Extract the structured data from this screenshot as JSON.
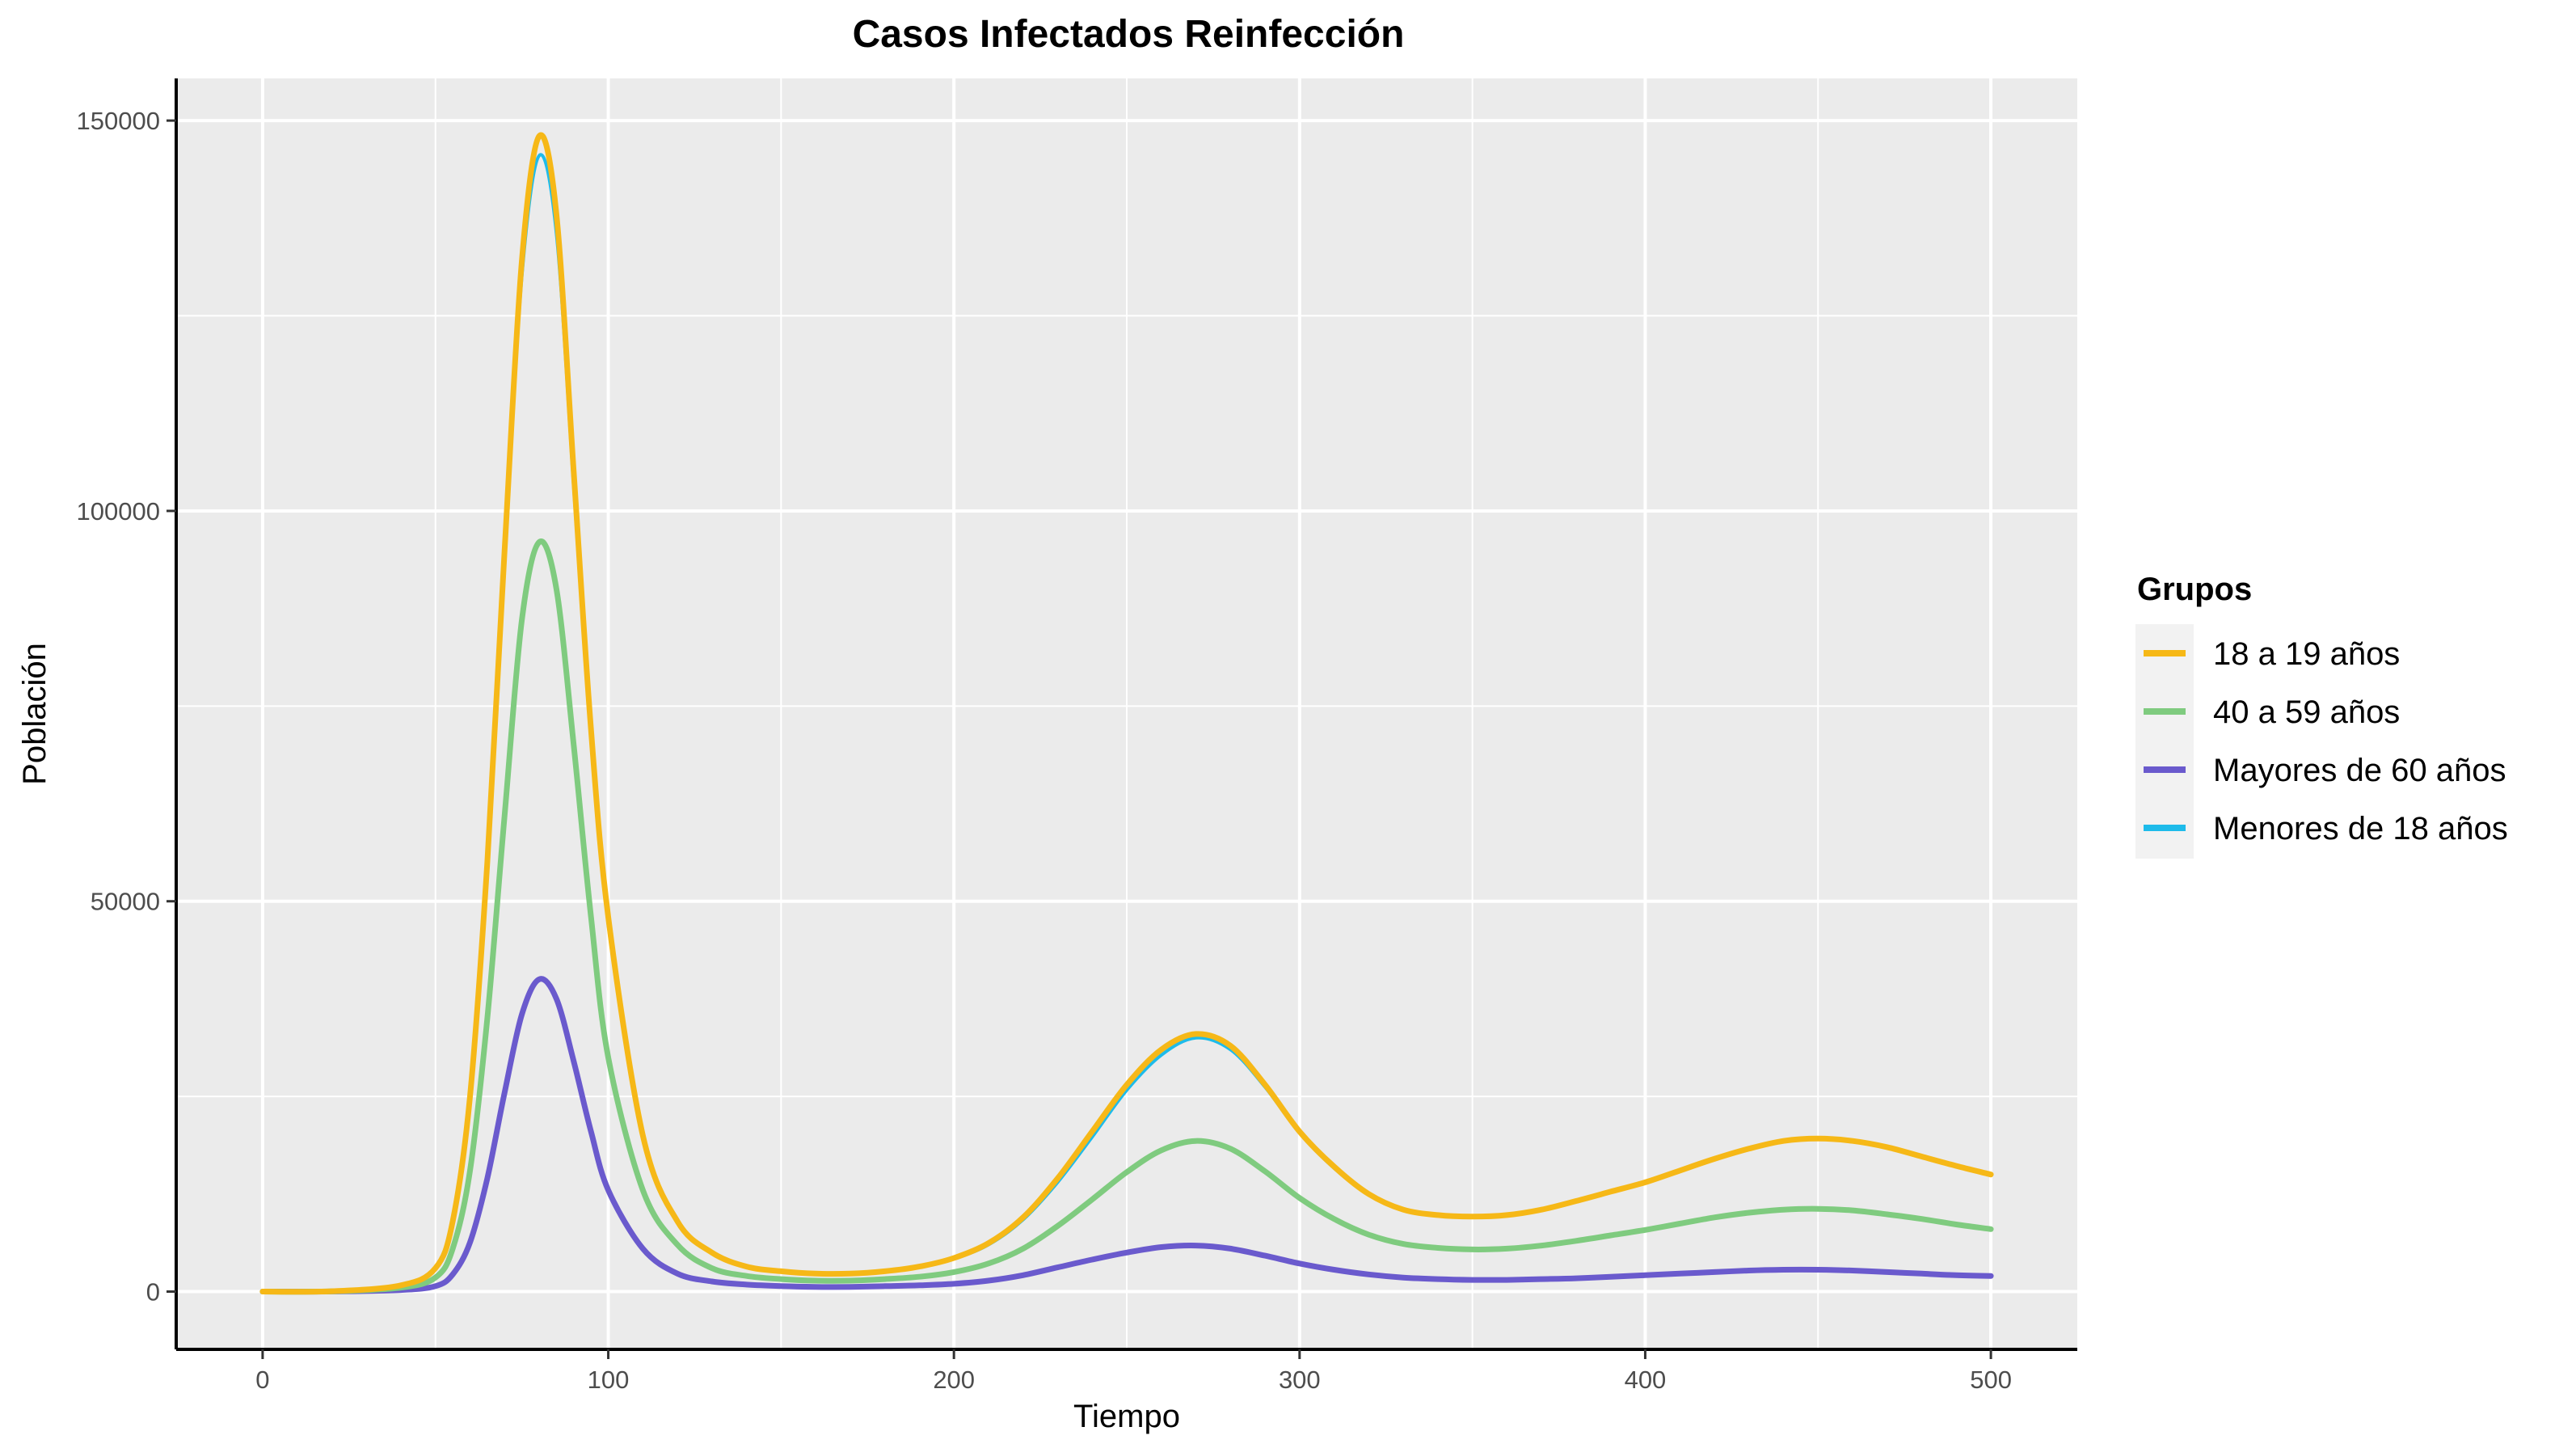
{
  "chart_data": {
    "type": "line",
    "title": "Casos Infectados Reinfección",
    "xlabel": "Tiempo",
    "ylabel": "Población",
    "xlim": [
      -25,
      525
    ],
    "ylim": [
      -7400,
      155400
    ],
    "x_ticks": [
      0,
      100,
      200,
      300,
      400,
      500
    ],
    "y_ticks": [
      0,
      50000,
      100000,
      150000
    ],
    "x_tick_labels": [
      "0",
      "100",
      "200",
      "300",
      "400",
      "500"
    ],
    "y_tick_labels": [
      "0",
      "50000",
      "100000",
      "150000"
    ],
    "grid": true,
    "legend": {
      "title": "Grupos",
      "position": "right"
    },
    "x": [
      0,
      20,
      40,
      50,
      55,
      60,
      65,
      70,
      75,
      80,
      85,
      90,
      95,
      100,
      110,
      120,
      130,
      140,
      150,
      160,
      170,
      180,
      190,
      200,
      210,
      220,
      230,
      240,
      250,
      260,
      270,
      280,
      290,
      300,
      310,
      320,
      330,
      340,
      350,
      360,
      370,
      380,
      390,
      400,
      410,
      420,
      430,
      440,
      450,
      460,
      470,
      480,
      490,
      500
    ],
    "series": [
      {
        "name": "18 a 19 años",
        "color": "#F6B817",
        "values": [
          0,
          50,
          800,
          3000,
          9000,
          25000,
          55000,
          95000,
          132000,
          148000,
          138000,
          105000,
          72000,
          48000,
          20000,
          9000,
          5000,
          3200,
          2600,
          2300,
          2300,
          2600,
          3200,
          4300,
          6200,
          9500,
          14500,
          20500,
          26500,
          31000,
          33000,
          31500,
          26500,
          20500,
          16000,
          12500,
          10500,
          9800,
          9600,
          9800,
          10500,
          11600,
          12800,
          14000,
          15500,
          17000,
          18300,
          19300,
          19600,
          19300,
          18500,
          17300,
          16100,
          15000
        ]
      },
      {
        "name": "40 a 59 años",
        "color": "#7FCB7F",
        "values": [
          0,
          30,
          500,
          1800,
          5500,
          15500,
          35000,
          61000,
          86000,
          96000,
          90000,
          70000,
          48000,
          30000,
          13000,
          6000,
          3000,
          2000,
          1600,
          1400,
          1400,
          1600,
          1900,
          2500,
          3600,
          5500,
          8400,
          11800,
          15300,
          18100,
          19300,
          18300,
          15400,
          12000,
          9300,
          7300,
          6100,
          5600,
          5400,
          5500,
          5900,
          6500,
          7200,
          7900,
          8700,
          9500,
          10100,
          10500,
          10600,
          10400,
          9900,
          9300,
          8600,
          8000
        ]
      },
      {
        "name": "Mayores de 60 años",
        "color": "#6A5ACD",
        "values": [
          0,
          10,
          200,
          700,
          2200,
          6300,
          14500,
          25500,
          35500,
          40000,
          37500,
          29500,
          20500,
          13000,
          5500,
          2300,
          1300,
          900,
          700,
          600,
          600,
          700,
          800,
          1000,
          1400,
          2100,
          3100,
          4100,
          5000,
          5700,
          5900,
          5500,
          4600,
          3600,
          2800,
          2200,
          1800,
          1600,
          1500,
          1500,
          1600,
          1700,
          1900,
          2100,
          2300,
          2500,
          2700,
          2800,
          2800,
          2700,
          2500,
          2300,
          2100,
          2000
        ]
      },
      {
        "name": "Menores de 18 años",
        "color": "#1EBBEA",
        "values": [
          0,
          50,
          800,
          3000,
          9000,
          25000,
          54500,
          94000,
          130000,
          145500,
          135500,
          103000,
          70500,
          47000,
          19500,
          8800,
          4900,
          3100,
          2500,
          2200,
          2200,
          2500,
          3100,
          4200,
          6000,
          9200,
          14000,
          19800,
          25800,
          30300,
          32500,
          31000,
          26200,
          20300,
          15800,
          12400,
          10400,
          9700,
          9500,
          9700,
          10400,
          11500,
          12700,
          13900,
          15400,
          16900,
          18200,
          19200,
          19500,
          19200,
          18400,
          17200,
          16000,
          14900
        ]
      }
    ]
  }
}
